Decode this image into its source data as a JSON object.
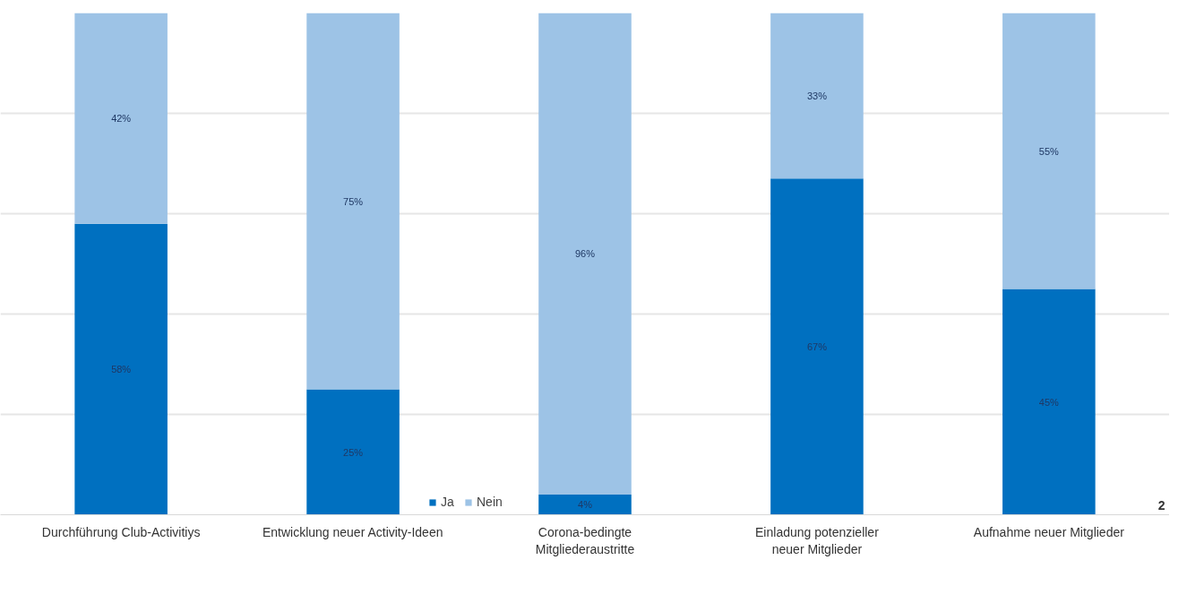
{
  "chart_data": {
    "type": "bar",
    "stacked": true,
    "categories": [
      "Durchführung Club-Activitiys",
      "Entwicklung neuer Activity-Ideen",
      "Corona-bedingte Mitgliederaustritte",
      "Einladung potenzieller neuer Mitglieder",
      "Aufnahme neuer Mitglieder"
    ],
    "series": [
      {
        "name": "Ja",
        "color": "#0070c0",
        "values": [
          58,
          25,
          4,
          67,
          45
        ],
        "value_labels": [
          "58%",
          "25%",
          "4%",
          "67%",
          "45%"
        ]
      },
      {
        "name": "Nein",
        "color": "#9dc3e6",
        "values": [
          42,
          75,
          96,
          33,
          55
        ],
        "value_labels": [
          "42%",
          "75%",
          "96%",
          "33%",
          "55%"
        ]
      }
    ],
    "ylim": [
      0,
      100
    ],
    "grid": "y",
    "tick_labels": "x",
    "legend": "bottom",
    "annotations": [
      "2"
    ]
  }
}
